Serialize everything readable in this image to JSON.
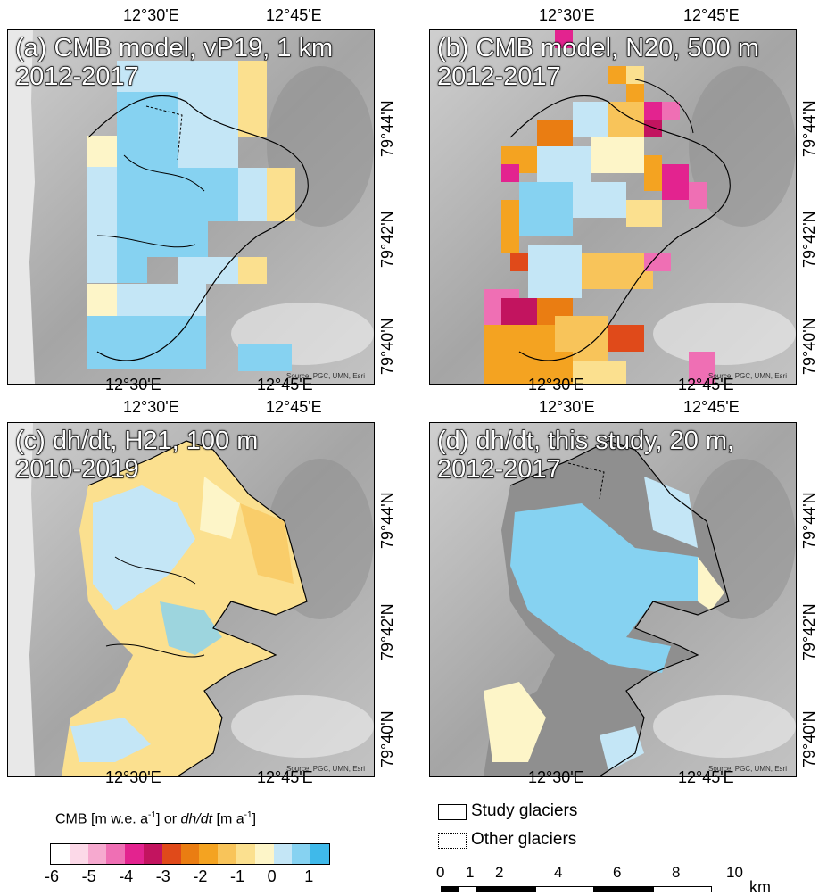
{
  "axis_labels": {
    "lon_1230": "12°30'E",
    "lon_1245": "12°45'E",
    "lat_7944": "79°44'N",
    "lat_7942": "79°42'N",
    "lat_7940": "79°40'N"
  },
  "panels": [
    {
      "title_line1": "(a) CMB model, vP19, 1 km",
      "title_line2": "2012-2017",
      "source": "Source: PGC, UMN, Esri"
    },
    {
      "title_line1": "(b) CMB model, N20, 500 m",
      "title_line2": "2012-2017",
      "source": "Source: PGC, UMN, Esri"
    },
    {
      "title_line1": "(c) dh/dt, H21, 100 m",
      "title_line2": "2010-2019",
      "source": "Source: PGC, UMN, Esri"
    },
    {
      "title_line1": "(d) dh/dt, this study, 20 m,",
      "title_line2": "2012-2017",
      "source": "Source: PGC, UMN, Esri"
    }
  ],
  "legend": {
    "title_prefix": "CMB [m w.e. a",
    "title_mid": "] or ",
    "title_italic": "dh/dt",
    "title_suffix": " [m a",
    "title_end": "]",
    "exp": "-1",
    "ticks": [
      "-6",
      "-5",
      "-4",
      "-3",
      "-2",
      "-1",
      "0",
      "1"
    ],
    "colors": [
      "#ffffff",
      "#fcd9e8",
      "#f6a9cf",
      "#ef6fb4",
      "#e3238f",
      "#c2145f",
      "#e04a1a",
      "#ea7d12",
      "#f4a321",
      "#f8c45a",
      "#fbe08f",
      "#fdf5c8",
      "#c4e6f6",
      "#86d2f1",
      "#3fb9ea"
    ]
  },
  "key": {
    "study": "Study glaciers",
    "other": "Other glaciers"
  },
  "scalebar": {
    "ticks": [
      "0",
      "1",
      "2",
      "4",
      "6",
      "8",
      "10"
    ],
    "unit": "km"
  }
}
